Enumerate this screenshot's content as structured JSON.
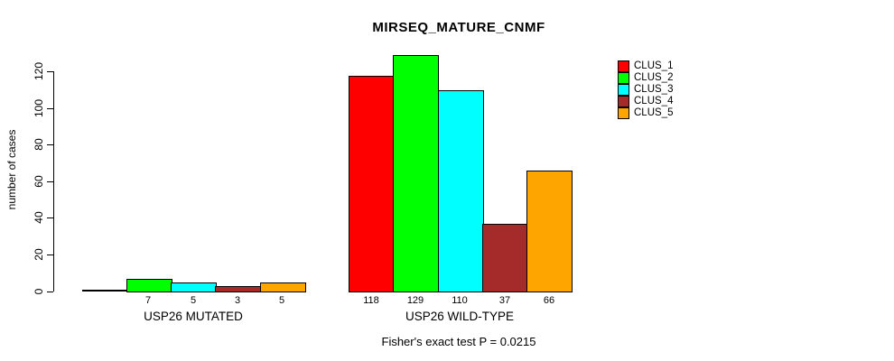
{
  "chart_data": {
    "type": "bar",
    "title": "MIRSEQ_MATURE_CNMF",
    "xlabel": "",
    "ylabel": "number of cases",
    "ylim": [
      0,
      120
    ],
    "yticks": [
      0,
      20,
      40,
      60,
      80,
      100,
      120
    ],
    "grid": false,
    "legend_position": "top-right",
    "categories": [
      "USP26 MUTATED",
      "USP26 WILD-TYPE"
    ],
    "series": [
      {
        "name": "CLUS_1",
        "color": "#ff0000",
        "values": [
          0,
          118
        ]
      },
      {
        "name": "CLUS_2",
        "color": "#00ff00",
        "values": [
          7,
          129
        ]
      },
      {
        "name": "CLUS_3",
        "color": "#00ffff",
        "values": [
          5,
          110
        ]
      },
      {
        "name": "CLUS_4",
        "color": "#a52a2a",
        "values": [
          3,
          37
        ]
      },
      {
        "name": "CLUS_5",
        "color": "#ffa500",
        "values": [
          5,
          66
        ]
      }
    ],
    "bar_labels": [
      [
        "",
        "7",
        "5",
        "3",
        "5"
      ],
      [
        "118",
        "129",
        "110",
        "37",
        "66"
      ]
    ],
    "annotation": "Fisher's exact test P = 0.0215"
  }
}
